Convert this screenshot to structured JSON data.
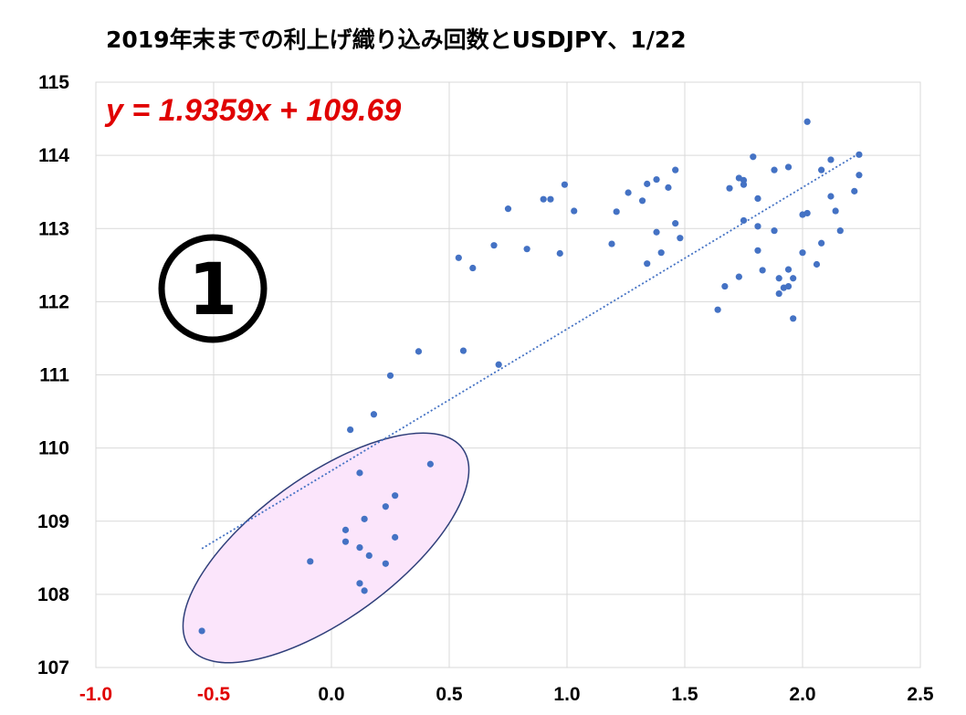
{
  "chart_data": {
    "type": "scatter",
    "title": "2019年末までの利上げ織り込み回数とUSDJPY、1/22",
    "xlabel": "",
    "ylabel": "",
    "xlim": [
      -1.0,
      2.5
    ],
    "ylim": [
      107,
      115
    ],
    "x_ticks": [
      "-1.0",
      "-0.5",
      "0.0",
      "0.5",
      "1.0",
      "1.5",
      "2.0",
      "2.5"
    ],
    "x_tick_values": [
      -1.0,
      -0.5,
      0.0,
      0.5,
      1.0,
      1.5,
      2.0,
      2.5
    ],
    "negative_tick_color": "#e00000",
    "y_ticks": [
      "107",
      "108",
      "109",
      "110",
      "111",
      "112",
      "113",
      "114",
      "115"
    ],
    "y_tick_values": [
      107,
      108,
      109,
      110,
      111,
      112,
      113,
      114,
      115
    ],
    "grid": true,
    "marker_color": "#4472c4",
    "trendline": {
      "equation": "y = 1.9359x + 109.69",
      "slope": 1.9359,
      "intercept": 109.69,
      "x_range": [
        -0.55,
        2.24
      ],
      "color": "#4472c4"
    },
    "annotation": {
      "label": "①",
      "ellipse_fill": "#fbe5fb",
      "ellipse_stroke": "#2f3f7a"
    },
    "points": [
      [
        -0.55,
        107.5
      ],
      [
        -0.09,
        108.45
      ],
      [
        0.06,
        108.88
      ],
      [
        0.06,
        108.72
      ],
      [
        0.12,
        108.64
      ],
      [
        0.12,
        108.15
      ],
      [
        0.14,
        108.05
      ],
      [
        0.14,
        109.03
      ],
      [
        0.16,
        108.53
      ],
      [
        0.12,
        109.66
      ],
      [
        0.23,
        109.2
      ],
      [
        0.23,
        108.42
      ],
      [
        0.27,
        109.35
      ],
      [
        0.27,
        108.78
      ],
      [
        0.42,
        109.78
      ],
      [
        0.08,
        110.25
      ],
      [
        0.18,
        110.46
      ],
      [
        0.25,
        110.99
      ],
      [
        0.37,
        111.32
      ],
      [
        0.56,
        111.33
      ],
      [
        0.71,
        111.14
      ],
      [
        0.54,
        112.6
      ],
      [
        0.6,
        112.46
      ],
      [
        0.69,
        112.77
      ],
      [
        0.75,
        113.27
      ],
      [
        0.83,
        112.72
      ],
      [
        0.9,
        113.4
      ],
      [
        0.93,
        113.4
      ],
      [
        0.97,
        112.66
      ],
      [
        0.99,
        113.6
      ],
      [
        1.03,
        113.24
      ],
      [
        1.19,
        112.79
      ],
      [
        1.21,
        113.23
      ],
      [
        1.26,
        113.49
      ],
      [
        1.32,
        113.38
      ],
      [
        1.34,
        113.61
      ],
      [
        1.34,
        112.52
      ],
      [
        1.38,
        113.67
      ],
      [
        1.38,
        112.95
      ],
      [
        1.4,
        112.67
      ],
      [
        1.43,
        113.56
      ],
      [
        1.46,
        113.8
      ],
      [
        1.46,
        113.07
      ],
      [
        1.48,
        112.87
      ],
      [
        1.64,
        111.89
      ],
      [
        1.67,
        112.21
      ],
      [
        1.69,
        113.55
      ],
      [
        1.73,
        113.69
      ],
      [
        1.73,
        112.34
      ],
      [
        1.75,
        113.66
      ],
      [
        1.75,
        113.6
      ],
      [
        1.75,
        113.11
      ],
      [
        1.79,
        113.98
      ],
      [
        1.81,
        113.41
      ],
      [
        1.81,
        113.03
      ],
      [
        1.81,
        112.7
      ],
      [
        1.83,
        112.43
      ],
      [
        1.88,
        113.8
      ],
      [
        1.88,
        112.97
      ],
      [
        1.9,
        112.32
      ],
      [
        1.9,
        112.11
      ],
      [
        1.92,
        112.19
      ],
      [
        1.94,
        113.84
      ],
      [
        1.94,
        112.44
      ],
      [
        1.94,
        112.21
      ],
      [
        1.96,
        112.32
      ],
      [
        1.96,
        111.77
      ],
      [
        2.0,
        113.19
      ],
      [
        2.0,
        112.67
      ],
      [
        2.02,
        114.46
      ],
      [
        2.02,
        113.21
      ],
      [
        2.06,
        112.51
      ],
      [
        2.08,
        113.8
      ],
      [
        2.08,
        112.8
      ],
      [
        2.12,
        113.94
      ],
      [
        2.12,
        113.44
      ],
      [
        2.14,
        113.24
      ],
      [
        2.16,
        112.97
      ],
      [
        2.22,
        113.51
      ],
      [
        2.24,
        114.01
      ],
      [
        2.24,
        113.73
      ]
    ]
  }
}
